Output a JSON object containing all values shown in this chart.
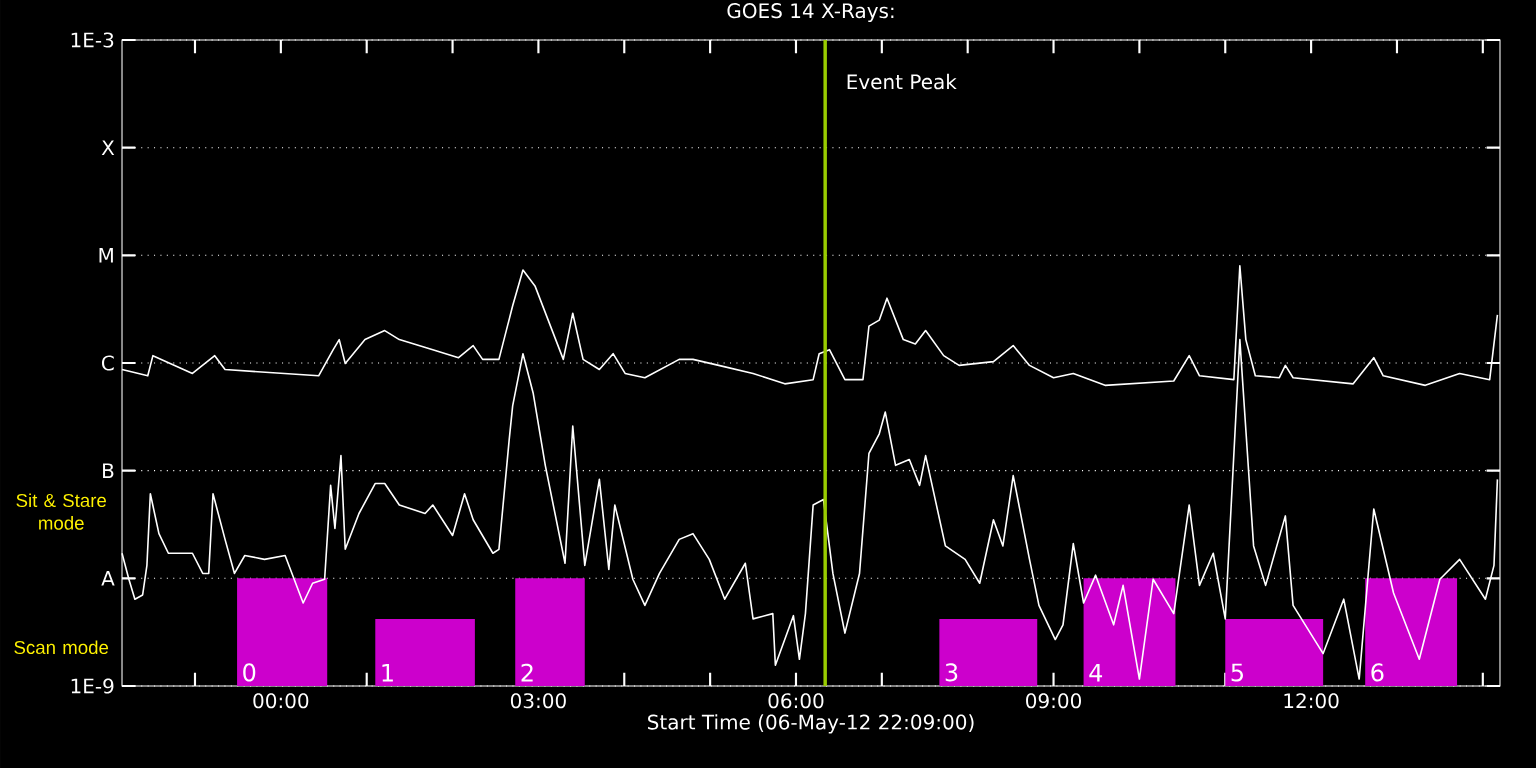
{
  "chart_data": {
    "type": "line",
    "title": "GOES 14 X-Rays:",
    "xlabel": "Start Time (06-May-12 22:09:00)",
    "log": true,
    "grid": "y",
    "xlim": [
      -1.85,
      14.2
    ],
    "xticks": [
      {
        "value": -1,
        "label": null
      },
      {
        "value": 0,
        "label": "00:00"
      },
      {
        "value": 1,
        "label": null
      },
      {
        "value": 2,
        "label": null
      },
      {
        "value": 3,
        "label": "03:00"
      },
      {
        "value": 4,
        "label": null
      },
      {
        "value": 5,
        "label": null
      },
      {
        "value": 6,
        "label": "06:00"
      },
      {
        "value": 7,
        "label": null
      },
      {
        "value": 8,
        "label": null
      },
      {
        "value": 9,
        "label": "09:00"
      },
      {
        "value": 10,
        "label": null
      },
      {
        "value": 11,
        "label": null
      },
      {
        "value": 12,
        "label": "12:00"
      },
      {
        "value": 13,
        "label": null
      },
      {
        "value": 14,
        "label": null
      }
    ],
    "ylim": [
      1e-09,
      0.001
    ],
    "yticks": [
      {
        "value": 1e-09,
        "label": "1E-9"
      },
      {
        "value": 1e-08,
        "label": "A"
      },
      {
        "value": 1e-07,
        "label": "B"
      },
      {
        "value": 1e-06,
        "label": "C"
      },
      {
        "value": 1e-05,
        "label": "M"
      },
      {
        "value": 0.0001,
        "label": "X"
      },
      {
        "value": 0.001,
        "label": "1E-3"
      }
    ],
    "ref_lines": [
      {
        "axis": "x",
        "value": 6.34,
        "label": "Event Peak",
        "color": "#99cc00"
      }
    ],
    "annotations": [
      "Sit & Stare mode",
      "Scan mode"
    ],
    "series": [
      {
        "type": "area",
        "name": "0",
        "color": "#cc00cc",
        "x": [
          -0.51,
          0.54
        ],
        "values": [
          1e-08,
          1e-08
        ]
      },
      {
        "type": "area",
        "name": "1",
        "color": "#cc00cc",
        "x": [
          1.1,
          2.26
        ],
        "values": [
          4.2e-09,
          4.2e-09
        ]
      },
      {
        "type": "area",
        "name": "2",
        "color": "#cc00cc",
        "x": [
          2.73,
          3.54
        ],
        "values": [
          1e-08,
          1e-08
        ]
      },
      {
        "type": "area",
        "name": "3",
        "color": "#cc00cc",
        "x": [
          7.67,
          8.81
        ],
        "values": [
          4.2e-09,
          4.2e-09
        ]
      },
      {
        "type": "area",
        "name": "4",
        "color": "#cc00cc",
        "x": [
          9.35,
          10.42
        ],
        "values": [
          1e-08,
          1e-08
        ]
      },
      {
        "type": "area",
        "name": "5",
        "color": "#cc00cc",
        "x": [
          11.0,
          12.14
        ],
        "values": [
          4.2e-09,
          4.2e-09
        ]
      },
      {
        "type": "area",
        "name": "6",
        "color": "#cc00cc",
        "x": [
          12.63,
          13.7
        ],
        "values": [
          1e-08,
          1e-08
        ]
      },
      {
        "color": "#ffffff",
        "x": [
          -1.85,
          -1.55,
          -1.49,
          -1.03,
          -0.77,
          -0.65,
          0.44,
          0.61,
          0.68,
          0.75,
          0.98,
          1.21,
          1.38,
          1.77,
          2.07,
          2.24,
          2.35,
          2.54,
          2.7,
          2.82,
          2.96,
          3.29,
          3.4,
          3.52,
          3.71,
          3.87,
          4.01,
          4.24,
          4.64,
          4.8,
          5.1,
          5.5,
          5.87,
          6.2,
          6.27,
          6.39,
          6.57,
          6.78,
          6.85,
          6.97,
          7.06,
          7.25,
          7.39,
          7.51,
          7.72,
          7.9,
          8.3,
          8.53,
          8.72,
          9.0,
          9.23,
          9.6,
          10.4,
          10.58,
          10.7,
          11.1,
          11.17,
          11.24,
          11.35,
          11.63,
          11.7,
          11.79,
          12.49,
          12.73,
          12.84,
          13.33,
          13.73,
          14.08,
          14.17
        ],
        "values": [
          8.7e-07,
          7.6e-07,
          1.17e-06,
          8e-07,
          1.17e-06,
          8.7e-07,
          7.6e-07,
          1.33e-06,
          1.65e-06,
          9.9e-07,
          1.65e-06,
          2e-06,
          1.65e-06,
          1.33e-06,
          1.12e-06,
          1.45e-06,
          1.08e-06,
          1.08e-06,
          3.4e-06,
          7.3e-06,
          5.2e-06,
          1.08e-06,
          2.9e-06,
          1.08e-06,
          8.7e-07,
          1.22e-06,
          8e-07,
          7.3e-07,
          1.08e-06,
          1.08e-06,
          9.5e-07,
          8e-07,
          6.4e-07,
          7e-07,
          1.22e-06,
          1.33e-06,
          7e-07,
          7e-07,
          2.2e-06,
          2.5e-06,
          4e-06,
          1.65e-06,
          1.5e-06,
          2e-06,
          1.17e-06,
          9.5e-07,
          1.03e-06,
          1.45e-06,
          9.5e-07,
          7.3e-07,
          8e-07,
          6.2e-07,
          6.8e-07,
          1.17e-06,
          7.6e-07,
          7e-07,
          8e-06,
          1.65e-06,
          7.6e-07,
          7.3e-07,
          9.5e-07,
          7.3e-07,
          6.4e-07,
          1.12e-06,
          7.6e-07,
          6.2e-07,
          8e-07,
          7e-07,
          2.8e-06
        ]
      },
      {
        "color": "#ffffff",
        "x": [
          -1.85,
          -1.77,
          -1.7,
          -1.61,
          -1.56,
          -1.52,
          -1.42,
          -1.31,
          -1.03,
          -0.91,
          -0.84,
          -0.79,
          -0.65,
          -0.54,
          -0.42,
          -0.19,
          0.05,
          0.26,
          0.37,
          0.51,
          0.58,
          0.63,
          0.7,
          0.75,
          0.91,
          1.1,
          1.21,
          1.38,
          1.68,
          1.77,
          2.0,
          2.14,
          2.24,
          2.47,
          2.54,
          2.66,
          2.7,
          2.82,
          2.94,
          3.08,
          3.31,
          3.4,
          3.54,
          3.71,
          3.82,
          3.89,
          4.1,
          4.24,
          4.41,
          4.64,
          4.8,
          4.99,
          5.17,
          5.41,
          5.5,
          5.73,
          5.76,
          5.97,
          6.04,
          6.11,
          6.2,
          6.32,
          6.43,
          6.57,
          6.74,
          6.85,
          6.97,
          7.04,
          7.16,
          7.32,
          7.44,
          7.51,
          7.74,
          7.97,
          8.14,
          8.3,
          8.41,
          8.53,
          8.72,
          8.83,
          9.02,
          9.11,
          9.23,
          9.35,
          9.49,
          9.7,
          9.81,
          10.0,
          10.16,
          10.4,
          10.58,
          10.7,
          10.86,
          11.0,
          11.17,
          11.33,
          11.47,
          11.7,
          11.79,
          12.14,
          12.38,
          12.56,
          12.73,
          12.96,
          13.26,
          13.5,
          13.73,
          14.03,
          14.13,
          14.17
        ],
        "values": [
          1.71e-08,
          9.8e-09,
          6.4e-09,
          7e-09,
          1.32e-08,
          6.1e-08,
          2.6e-08,
          1.71e-08,
          1.71e-08,
          1.11e-08,
          1.11e-08,
          6.1e-08,
          2.3e-08,
          1.11e-08,
          1.63e-08,
          1.5e-08,
          1.63e-08,
          5.9e-09,
          9e-09,
          9.8e-09,
          7.3e-08,
          2.9e-08,
          1.38e-07,
          1.86e-08,
          4e-08,
          7.6e-08,
          7.6e-08,
          4.8e-08,
          4e-08,
          4.8e-08,
          2.5e-08,
          6.1e-08,
          3.5e-08,
          1.71e-08,
          1.86e-08,
          1.95e-07,
          4e-07,
          1.22e-06,
          5.2e-07,
          1.12e-07,
          1.38e-08,
          2.6e-07,
          1.32e-08,
          8.3e-08,
          1.21e-08,
          4.8e-08,
          9.8e-09,
          5.6e-09,
          1.11e-08,
          2.3e-08,
          2.6e-08,
          1.5e-08,
          6.4e-09,
          1.38e-08,
          4.2e-09,
          4.7e-09,
          1.56e-09,
          4.5e-09,
          1.77e-09,
          4.7e-09,
          4.8e-08,
          5.4e-08,
          1.11e-08,
          3.1e-09,
          1.11e-08,
          1.45e-07,
          2.2e-07,
          3.5e-07,
          1.12e-07,
          1.27e-07,
          7.3e-08,
          1.38e-07,
          2e-08,
          1.5e-08,
          9e-09,
          3.5e-08,
          2e-08,
          9e-08,
          1.5e-08,
          5.6e-09,
          2.7e-09,
          3.7e-09,
          2.1e-08,
          5.9e-09,
          1.07e-08,
          3.7e-09,
          8.6e-09,
          1.16e-09,
          9.8e-09,
          4.7e-09,
          4.8e-08,
          8.6e-09,
          1.71e-08,
          4.2e-09,
          1.65e-06,
          2e-08,
          8.6e-09,
          3.8e-08,
          5.6e-09,
          2e-09,
          6.4e-09,
          1.16e-09,
          4.4e-08,
          7.3e-09,
          1.77e-09,
          9.8e-09,
          1.5e-08,
          6.4e-09,
          1.32e-08,
          8.3e-08
        ]
      }
    ]
  }
}
